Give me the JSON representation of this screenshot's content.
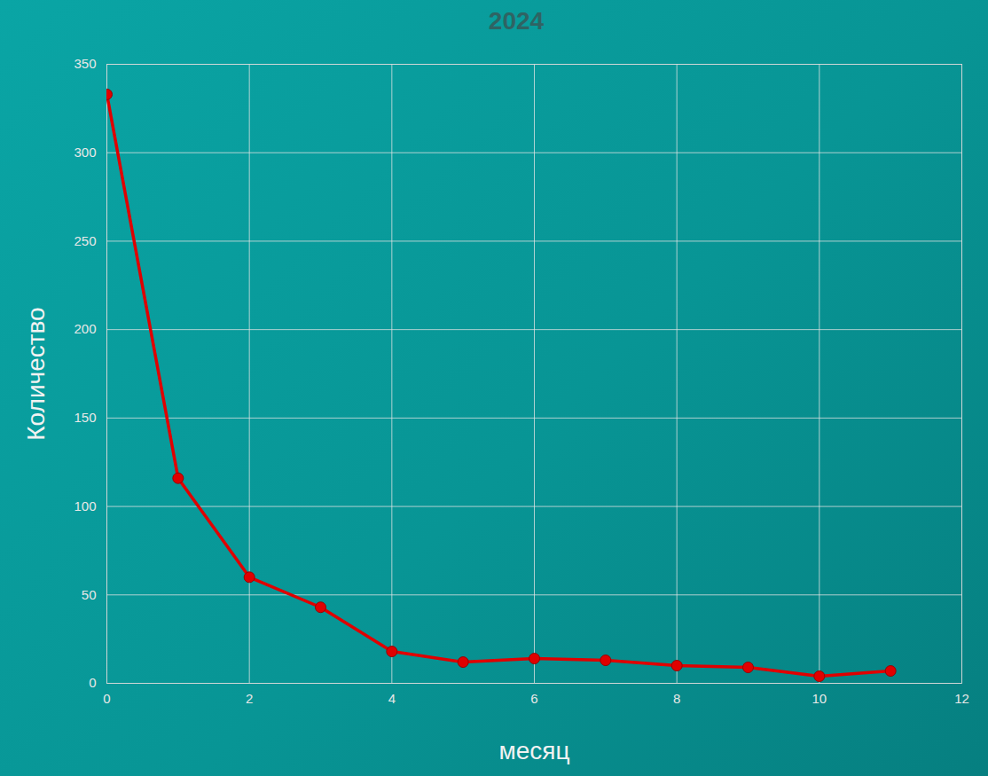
{
  "chart_data": {
    "type": "line",
    "title": "2024",
    "x_label": "месяц",
    "y_label": "Количество",
    "x": [
      0,
      1,
      2,
      3,
      4,
      5,
      6,
      7,
      8,
      9,
      10,
      11
    ],
    "values": [
      333,
      116,
      60,
      43,
      18,
      12,
      14,
      13,
      10,
      9,
      4,
      7
    ],
    "color": "#e00000",
    "marker": "circle",
    "line_style": "solid",
    "xlim": [
      0,
      12
    ],
    "xticks": [
      0,
      2,
      4,
      6,
      8,
      10,
      12
    ],
    "ylim": [
      0,
      350
    ],
    "yticks": [
      0,
      50,
      100,
      150,
      200,
      250,
      300,
      350
    ],
    "grid": true
  }
}
